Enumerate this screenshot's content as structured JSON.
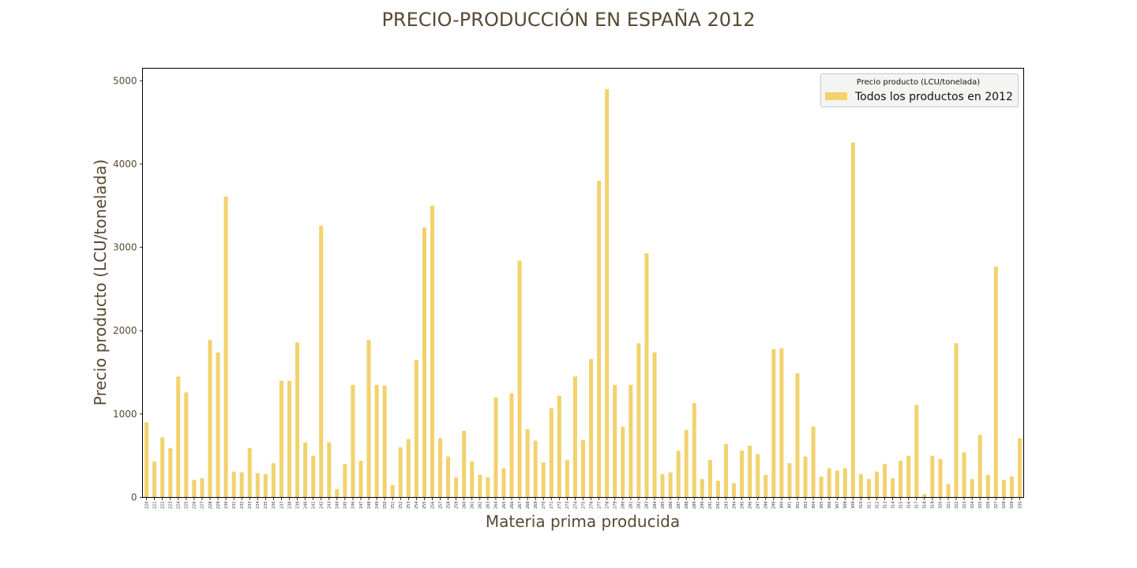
{
  "chart_data": {
    "type": "bar",
    "title": "PRECIO-PRODUCCIÓN EN ESPAÑA 2012",
    "xlabel": "Materia prima producida",
    "ylabel": "Precio producto (LCU/tonelada)",
    "ylim": [
      0,
      5150
    ],
    "yticks": [
      0,
      1000,
      2000,
      3000,
      4000,
      5000
    ],
    "grid": false,
    "legend": {
      "title": "Precio producto (LCU/tonelada)",
      "placement": "top-right"
    },
    "bar_color": "#f2d26d",
    "categories": [
      "220",
      "221",
      "222",
      "223",
      "224",
      "225",
      "226",
      "227",
      "228",
      "229",
      "230",
      "231",
      "232",
      "233",
      "234",
      "235",
      "236",
      "237",
      "238",
      "239",
      "240",
      "241",
      "242",
      "243",
      "244",
      "245",
      "246",
      "247",
      "248",
      "249",
      "250",
      "251",
      "252",
      "253",
      "254",
      "255",
      "256",
      "257",
      "258",
      "259",
      "260",
      "261",
      "262",
      "263",
      "264",
      "265",
      "266",
      "267",
      "268",
      "269",
      "270",
      "271",
      "272",
      "273",
      "274",
      "275",
      "276",
      "277",
      "278",
      "279",
      "280",
      "281",
      "282",
      "283",
      "284",
      "285",
      "286",
      "287",
      "288",
      "289",
      "290",
      "291",
      "292",
      "293",
      "294",
      "295",
      "296",
      "297",
      "298",
      "299",
      "300",
      "301",
      "302",
      "303",
      "304",
      "305",
      "306",
      "307",
      "308",
      "309",
      "310",
      "311",
      "312",
      "313",
      "314",
      "315",
      "316",
      "317",
      "318",
      "319",
      "320",
      "321",
      "322",
      "323",
      "324",
      "325",
      "326",
      "327",
      "328",
      "329",
      "330"
    ],
    "series": [
      {
        "name": "Todos los productos en 2012",
        "values": [
          900,
          430,
          720,
          590,
          1450,
          1260,
          210,
          230,
          1890,
          1740,
          3610,
          310,
          300,
          590,
          290,
          280,
          410,
          1400,
          1400,
          1860,
          660,
          500,
          3260,
          660,
          100,
          400,
          1350,
          440,
          1890,
          1350,
          1340,
          150,
          600,
          700,
          1650,
          3240,
          3500,
          710,
          490,
          240,
          800,
          430,
          270,
          240,
          1200,
          350,
          1250,
          2840,
          820,
          680,
          420,
          1070,
          1220,
          450,
          1450,
          690,
          1660,
          3800,
          4900,
          1350,
          850,
          1350,
          1850,
          2930,
          1740,
          280,
          300,
          560,
          810,
          1130,
          220,
          450,
          200,
          640,
          170,
          560,
          620,
          520,
          270,
          1780,
          1790,
          410,
          1490,
          490,
          850,
          250,
          350,
          320,
          350,
          4260,
          280,
          220,
          310,
          400,
          230,
          440,
          500,
          1110,
          40,
          500,
          460,
          160,
          1850,
          540,
          220,
          750,
          270,
          2770,
          210,
          250,
          710
        ]
      }
    ]
  }
}
